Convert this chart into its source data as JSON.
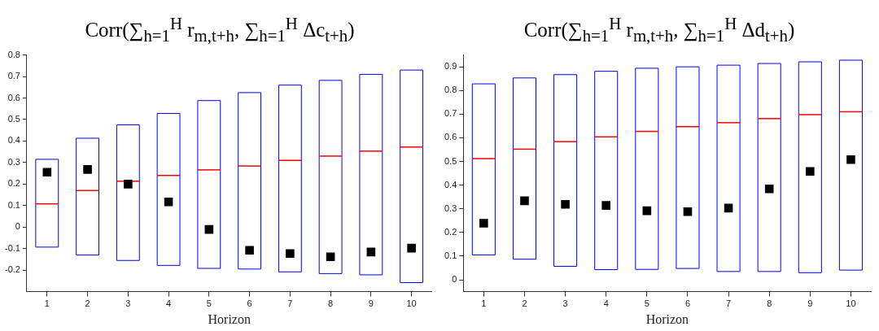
{
  "chart_data": [
    {
      "type": "box",
      "title": "Corr(∑$_{h=1}$$^{H}$ r$_{m,t+h}$, ∑$_{h=1}$$^{H}$ Δc$_{t+h}$)",
      "xlabel": "Horizon",
      "categories": [
        "1",
        "2",
        "3",
        "4",
        "5",
        "6",
        "7",
        "8",
        "9",
        "10"
      ],
      "ylim": [
        -0.3,
        0.8
      ],
      "yticks": [
        -0.2,
        -0.1,
        0,
        0.1,
        0.2,
        0.3,
        0.4,
        0.5,
        0.6,
        0.7,
        0.8
      ],
      "grid": false,
      "legend": false,
      "series": [
        {
          "color": "#0000ff",
          "boxes": [
            {
              "low": -0.093,
              "q1": -0.093,
              "median": 0.108,
              "q3": 0.315,
              "high": 0.315
            },
            {
              "low": -0.13,
              "q1": -0.13,
              "median": 0.17,
              "q3": 0.413,
              "high": 0.413
            },
            {
              "low": -0.155,
              "q1": -0.155,
              "median": 0.213,
              "q3": 0.475,
              "high": 0.475
            },
            {
              "low": -0.178,
              "q1": -0.178,
              "median": 0.24,
              "q3": 0.528,
              "high": 0.528
            },
            {
              "low": -0.192,
              "q1": -0.192,
              "median": 0.266,
              "q3": 0.588,
              "high": 0.588
            },
            {
              "low": -0.195,
              "q1": -0.195,
              "median": 0.284,
              "q3": 0.625,
              "high": 0.625
            },
            {
              "low": -0.208,
              "q1": -0.208,
              "median": 0.31,
              "q3": 0.66,
              "high": 0.66
            },
            {
              "low": -0.216,
              "q1": -0.216,
              "median": 0.33,
              "q3": 0.682,
              "high": 0.682
            },
            {
              "low": -0.222,
              "q1": -0.222,
              "median": 0.353,
              "q3": 0.71,
              "high": 0.71
            },
            {
              "low": -0.258,
              "q1": -0.258,
              "median": 0.372,
              "q3": 0.73,
              "high": 0.73
            }
          ]
        },
        {
          "type": "scatter",
          "marker": "square",
          "color": "#000000",
          "x": [
            "1",
            "2",
            "3",
            "4",
            "5",
            "6",
            "7",
            "8",
            "9",
            "10"
          ],
          "values": [
            0.255,
            0.268,
            0.2,
            0.117,
            -0.011,
            -0.108,
            -0.123,
            -0.138,
            -0.116,
            -0.098
          ]
        }
      ]
    },
    {
      "type": "box",
      "title": "Corr(∑$_{h=1}$$^{H}$ r$_{m,t+h}$, ∑$_{h=1}$$^{H}$ Δd$_{t+h}$)",
      "xlabel": "Horizon",
      "categories": [
        "1",
        "2",
        "3",
        "4",
        "5",
        "6",
        "7",
        "8",
        "9",
        "10"
      ],
      "ylim": [
        -0.05,
        0.95
      ],
      "yticks": [
        0,
        0.1,
        0.2,
        0.3,
        0.4,
        0.5,
        0.6,
        0.7,
        0.8,
        0.9
      ],
      "grid": false,
      "legend": false,
      "series": [
        {
          "color": "#0000ff",
          "boxes": [
            {
              "low": 0.105,
              "q1": 0.105,
              "median": 0.512,
              "q3": 0.828,
              "high": 0.828
            },
            {
              "low": 0.087,
              "q1": 0.087,
              "median": 0.552,
              "q3": 0.853,
              "high": 0.853
            },
            {
              "low": 0.057,
              "q1": 0.057,
              "median": 0.584,
              "q3": 0.867,
              "high": 0.867
            },
            {
              "low": 0.043,
              "q1": 0.043,
              "median": 0.604,
              "q3": 0.881,
              "high": 0.881
            },
            {
              "low": 0.044,
              "q1": 0.044,
              "median": 0.627,
              "q3": 0.894,
              "high": 0.894
            },
            {
              "low": 0.048,
              "q1": 0.048,
              "median": 0.647,
              "q3": 0.9,
              "high": 0.9
            },
            {
              "low": 0.035,
              "q1": 0.035,
              "median": 0.664,
              "q3": 0.907,
              "high": 0.907
            },
            {
              "low": 0.035,
              "q1": 0.035,
              "median": 0.681,
              "q3": 0.914,
              "high": 0.914
            },
            {
              "low": 0.03,
              "q1": 0.03,
              "median": 0.698,
              "q3": 0.921,
              "high": 0.921
            },
            {
              "low": 0.041,
              "q1": 0.041,
              "median": 0.71,
              "q3": 0.928,
              "high": 0.928
            }
          ]
        },
        {
          "type": "scatter",
          "marker": "square",
          "color": "#000000",
          "x": [
            "1",
            "2",
            "3",
            "4",
            "5",
            "6",
            "7",
            "8",
            "9",
            "10"
          ],
          "values": [
            0.239,
            0.334,
            0.319,
            0.314,
            0.292,
            0.288,
            0.303,
            0.384,
            0.458,
            0.508
          ]
        }
      ]
    }
  ]
}
